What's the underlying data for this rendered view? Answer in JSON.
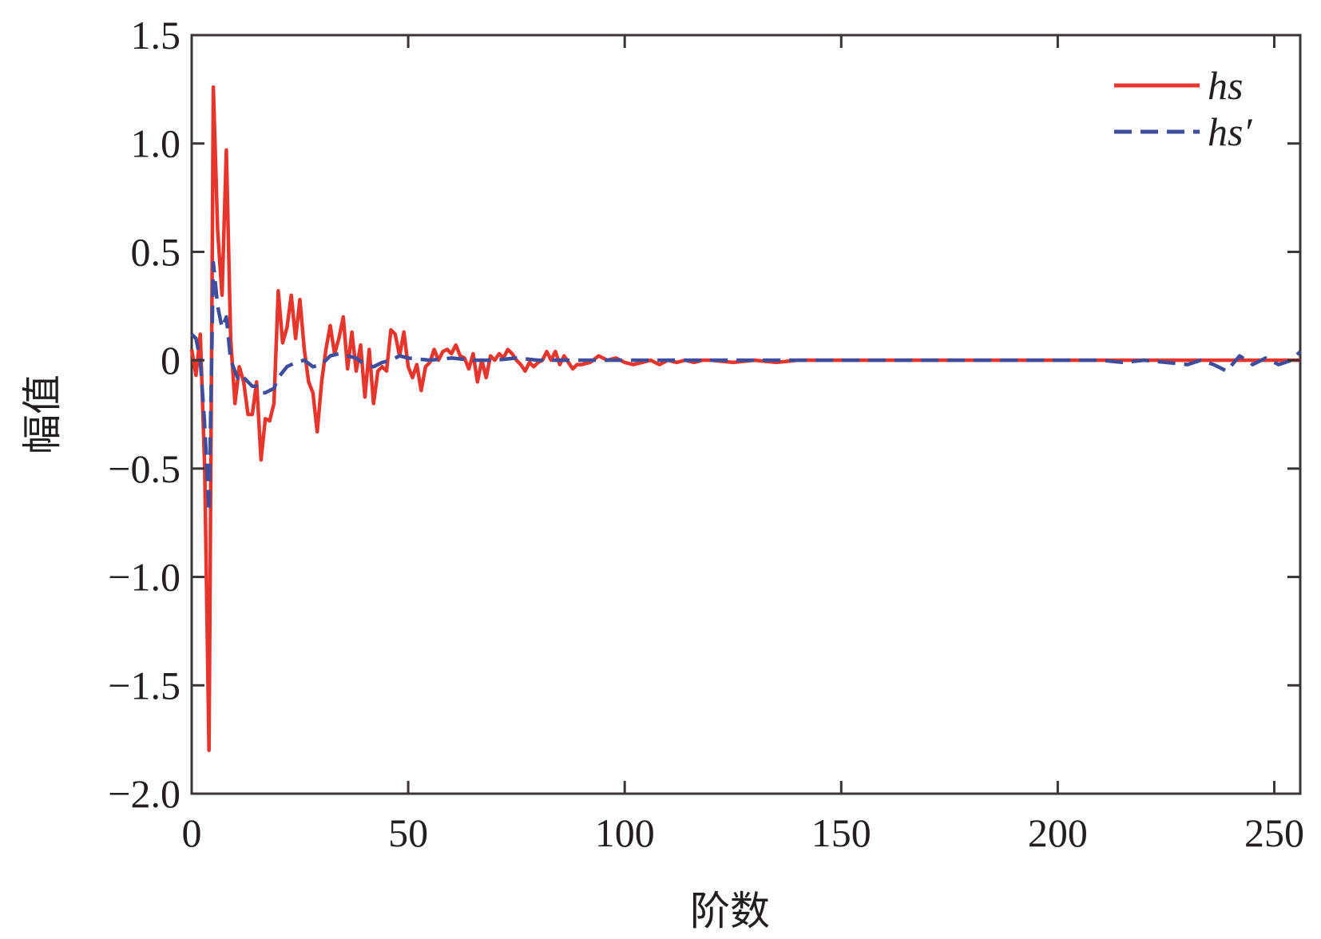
{
  "chart_data": {
    "type": "line",
    "title": "",
    "xlabel": "阶数",
    "ylabel": "幅值",
    "xlim": [
      0,
      256
    ],
    "ylim": [
      -2.0,
      1.5
    ],
    "x_ticks": [
      0,
      50,
      100,
      150,
      200,
      250
    ],
    "x_tick_labels": [
      "0",
      "50",
      "100",
      "150",
      "200",
      "250"
    ],
    "y_ticks": [
      -2.0,
      -1.5,
      -1.0,
      -0.5,
      0,
      0.5,
      1.0,
      1.5
    ],
    "y_tick_labels": [
      "−2.0",
      "−1.5",
      "−1.0",
      "−0.5",
      "0",
      "0.5",
      "1.0",
      "1.5"
    ],
    "grid": false,
    "legend_position": "top-right",
    "series": [
      {
        "name": "hs",
        "color": "#e8352c",
        "dash": "solid",
        "points": [
          [
            0,
            0.05
          ],
          [
            1,
            -0.07
          ],
          [
            2,
            0.12
          ],
          [
            3,
            -0.5
          ],
          [
            4,
            -1.8
          ],
          [
            5,
            1.26
          ],
          [
            6,
            0.6
          ],
          [
            7,
            0.3
          ],
          [
            8,
            0.97
          ],
          [
            9,
            0.1
          ],
          [
            10,
            -0.2
          ],
          [
            11,
            -0.03
          ],
          [
            12,
            -0.1
          ],
          [
            13,
            -0.25
          ],
          [
            14,
            -0.25
          ],
          [
            15,
            -0.1
          ],
          [
            16,
            -0.46
          ],
          [
            17,
            -0.27
          ],
          [
            18,
            -0.28
          ],
          [
            19,
            -0.2
          ],
          [
            20,
            0.32
          ],
          [
            21,
            0.08
          ],
          [
            22,
            0.15
          ],
          [
            23,
            0.3
          ],
          [
            24,
            0.1
          ],
          [
            25,
            0.28
          ],
          [
            26,
            0.05
          ],
          [
            27,
            -0.1
          ],
          [
            28,
            -0.15
          ],
          [
            29,
            -0.33
          ],
          [
            30,
            -0.1
          ],
          [
            31,
            0.05
          ],
          [
            32,
            0.16
          ],
          [
            33,
            0.03
          ],
          [
            34,
            0.1
          ],
          [
            35,
            0.2
          ],
          [
            36,
            -0.04
          ],
          [
            37,
            0.13
          ],
          [
            38,
            -0.05
          ],
          [
            39,
            0.07
          ],
          [
            40,
            -0.17
          ],
          [
            41,
            0.05
          ],
          [
            42,
            -0.2
          ],
          [
            43,
            -0.05
          ],
          [
            44,
            -0.03
          ],
          [
            45,
            -0.05
          ],
          [
            46,
            0.14
          ],
          [
            47,
            0.12
          ],
          [
            48,
            0.02
          ],
          [
            49,
            0.13
          ],
          [
            50,
            -0.03
          ],
          [
            51,
            -0.08
          ],
          [
            52,
            -0.02
          ],
          [
            53,
            -0.14
          ],
          [
            54,
            -0.03
          ],
          [
            55,
            -0.01
          ],
          [
            56,
            0.05
          ],
          [
            57,
            0.0
          ],
          [
            58,
            0.04
          ],
          [
            59,
            0.05
          ],
          [
            60,
            0.03
          ],
          [
            61,
            0.07
          ],
          [
            62,
            0.02
          ],
          [
            63,
            0.01
          ],
          [
            64,
            -0.04
          ],
          [
            65,
            0.03
          ],
          [
            66,
            -0.1
          ],
          [
            67,
            0.0
          ],
          [
            68,
            -0.08
          ],
          [
            69,
            0.02
          ],
          [
            70,
            0.0
          ],
          [
            71,
            0.03
          ],
          [
            72,
            0.01
          ],
          [
            73,
            0.05
          ],
          [
            74,
            0.03
          ],
          [
            75,
            0.0
          ],
          [
            76,
            -0.02
          ],
          [
            77,
            -0.05
          ],
          [
            78,
            -0.01
          ],
          [
            79,
            -0.03
          ],
          [
            80,
            -0.01
          ],
          [
            81,
            0.0
          ],
          [
            82,
            0.04
          ],
          [
            83,
            0.0
          ],
          [
            84,
            0.04
          ],
          [
            85,
            -0.02
          ],
          [
            86,
            0.02
          ],
          [
            87,
            -0.01
          ],
          [
            88,
            -0.04
          ],
          [
            89,
            -0.02
          ],
          [
            90,
            -0.02
          ],
          [
            92,
            -0.01
          ],
          [
            94,
            0.02
          ],
          [
            96,
            0.0
          ],
          [
            98,
            0.01
          ],
          [
            100,
            -0.01
          ],
          [
            102,
            -0.02
          ],
          [
            104,
            -0.01
          ],
          [
            106,
            0.0
          ],
          [
            108,
            -0.02
          ],
          [
            110,
            0.0
          ],
          [
            112,
            -0.01
          ],
          [
            114,
            0.0
          ],
          [
            116,
            -0.01
          ],
          [
            118,
            0.0
          ],
          [
            120,
            0.0
          ],
          [
            125,
            -0.01
          ],
          [
            130,
            0.0
          ],
          [
            135,
            -0.01
          ],
          [
            140,
            0.0
          ],
          [
            150,
            0.0
          ],
          [
            160,
            0.0
          ],
          [
            170,
            0.0
          ],
          [
            180,
            0.0
          ],
          [
            190,
            0.0
          ],
          [
            200,
            0.0
          ],
          [
            210,
            0.0
          ],
          [
            220,
            0.0
          ],
          [
            230,
            0.0
          ],
          [
            240,
            0.0
          ],
          [
            250,
            0.0
          ],
          [
            256,
            0.0
          ]
        ]
      },
      {
        "name": "hs′",
        "color": "#3e4e9c",
        "dash": "dashed",
        "points": [
          [
            0,
            0.12
          ],
          [
            1,
            0.1
          ],
          [
            2,
            0.0
          ],
          [
            3,
            -0.3
          ],
          [
            4,
            -0.7
          ],
          [
            5,
            0.45
          ],
          [
            6,
            0.25
          ],
          [
            7,
            0.15
          ],
          [
            8,
            0.2
          ],
          [
            9,
            0.0
          ],
          [
            10,
            -0.05
          ],
          [
            11,
            -0.1
          ],
          [
            12,
            -0.08
          ],
          [
            13,
            -0.1
          ],
          [
            14,
            -0.12
          ],
          [
            15,
            -0.12
          ],
          [
            16,
            -0.15
          ],
          [
            17,
            -0.15
          ],
          [
            18,
            -0.14
          ],
          [
            19,
            -0.13
          ],
          [
            20,
            -0.08
          ],
          [
            22,
            -0.03
          ],
          [
            24,
            -0.01
          ],
          [
            26,
            0.0
          ],
          [
            28,
            -0.03
          ],
          [
            30,
            -0.02
          ],
          [
            32,
            0.02
          ],
          [
            34,
            0.03
          ],
          [
            36,
            0.02
          ],
          [
            38,
            0.01
          ],
          [
            40,
            -0.02
          ],
          [
            42,
            -0.03
          ],
          [
            44,
            -0.01
          ],
          [
            46,
            0.0
          ],
          [
            48,
            0.02
          ],
          [
            50,
            0.01
          ],
          [
            55,
            0.0
          ],
          [
            60,
            0.01
          ],
          [
            65,
            0.0
          ],
          [
            70,
            0.0
          ],
          [
            75,
            0.01
          ],
          [
            80,
            0.0
          ],
          [
            85,
            0.0
          ],
          [
            90,
            0.0
          ],
          [
            100,
            0.0
          ],
          [
            120,
            0.0
          ],
          [
            140,
            0.0
          ],
          [
            160,
            0.0
          ],
          [
            180,
            0.0
          ],
          [
            200,
            0.0
          ],
          [
            210,
            0.0
          ],
          [
            215,
            -0.01
          ],
          [
            220,
            0.0
          ],
          [
            225,
            -0.01
          ],
          [
            230,
            -0.02
          ],
          [
            233,
            0.0
          ],
          [
            236,
            -0.02
          ],
          [
            239,
            -0.05
          ],
          [
            242,
            0.02
          ],
          [
            245,
            -0.02
          ],
          [
            248,
            0.01
          ],
          [
            251,
            -0.02
          ],
          [
            254,
            0.0
          ],
          [
            256,
            0.04
          ]
        ]
      }
    ]
  },
  "legend": {
    "items": [
      {
        "label": "hs",
        "color": "#e8352c",
        "dash": "solid"
      },
      {
        "label": "hs′",
        "color": "#3e4e9c",
        "dash": "dashed"
      }
    ]
  }
}
